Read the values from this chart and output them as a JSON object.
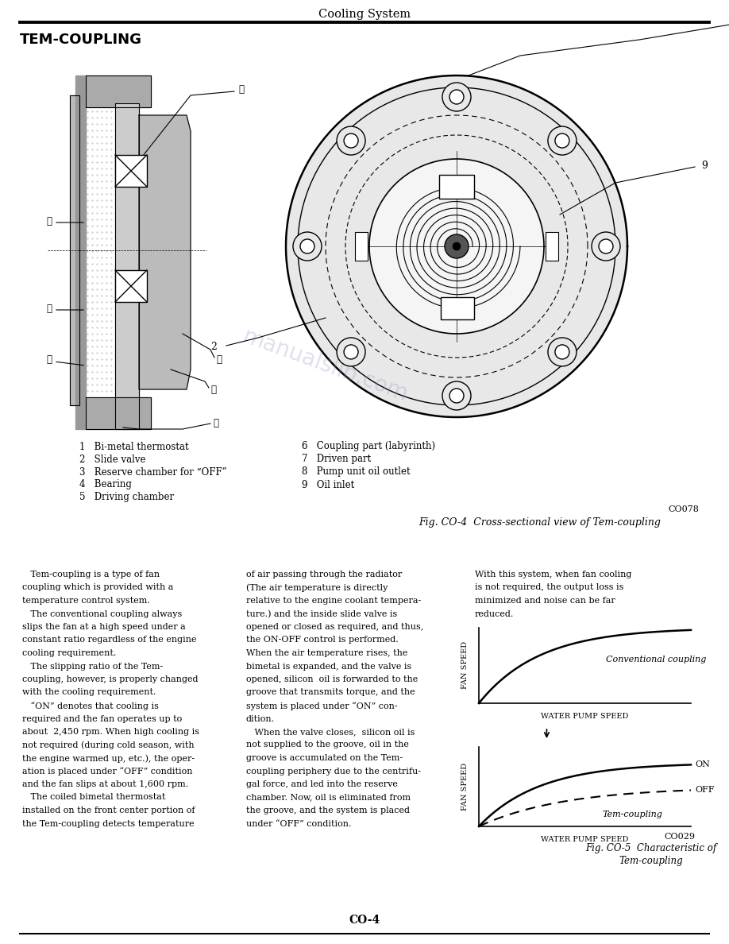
{
  "page_title": "Cooling System",
  "section_title": "TEM-COUPLING",
  "bg_color": "#ffffff",
  "fig_co4_caption": "Fig. CO-4  Cross-sectional view of Tem-coupling",
  "fig_co4_code": "CO078",
  "parts_list_col1": [
    "1   Bi-metal thermostat",
    "2   Slide valve",
    "3   Reserve chamber for “OFF”",
    "4   Bearing",
    "5   Driving chamber"
  ],
  "parts_list_col2": [
    "6   Coupling part (labyrinth)",
    "7   Driven part",
    "8   Pump unit oil outlet",
    "9   Oil inlet"
  ],
  "text_col1_lines": [
    "   Tem-coupling is a type of fan",
    "coupling which is provided with a",
    "temperature control system.",
    "   The conventional coupling always",
    "slips the fan at a high speed under a",
    "constant ratio regardless of the engine",
    "cooling requirement.",
    "   The slipping ratio of the Tem-",
    "coupling, however, is properly changed",
    "with the cooling requirement.",
    "   “ON” denotes that cooling is",
    "required and the fan operates up to",
    "about  2,450 rpm. When high cooling is",
    "not required (during cold season, with",
    "the engine warmed up, etc.), the oper-",
    "ation is placed under “OFF” condition",
    "and the fan slips at about 1,600 rpm.",
    "   The coiled bimetal thermostat",
    "installed on the front center portion of",
    "the Tem-coupling detects temperature"
  ],
  "text_col2_lines": [
    "of air passing through the radiator",
    "(The air temperature is directly",
    "relative to the engine coolant tempera-",
    "ture.) and the inside slide valve is",
    "opened or closed as required, and thus,",
    "the ON-OFF control is performed.",
    "When the air temperature rises, the",
    "bimetal is expanded, and the valve is",
    "opened, silicon  oil is forwarded to the",
    "groove that transmits torque, and the",
    "system is placed under “ON” con-",
    "dition.",
    "   When the valve closes,  silicon oil is",
    "not supplied to the groove, oil in the",
    "groove is accumulated on the Tem-",
    "coupling periphery due to the centrifu-",
    "gal force, and led into the reserve",
    "chamber. Now, oil is eliminated from",
    "the groove, and the system is placed",
    "under “OFF” condition."
  ],
  "text_col3_lines": [
    "With this system, when fan cooling",
    "is not required, the output loss is",
    "minimized and noise can be far",
    "reduced."
  ],
  "fig_co5_code": "CO029",
  "fig_co5_caption1": "Fig. CO-5  Characteristic of",
  "fig_co5_caption2": "Tem-coupling",
  "page_number": "CO-4",
  "watermark_text": "manualslib.com",
  "graph1_label": "Conventional coupling",
  "graph2_label_on": "ON",
  "graph2_label_off": "OFF",
  "graph2_label": "Tem-coupling",
  "axis_x_label": "WATER PUMP SPEED",
  "axis_y_label": "FAN SPEED"
}
